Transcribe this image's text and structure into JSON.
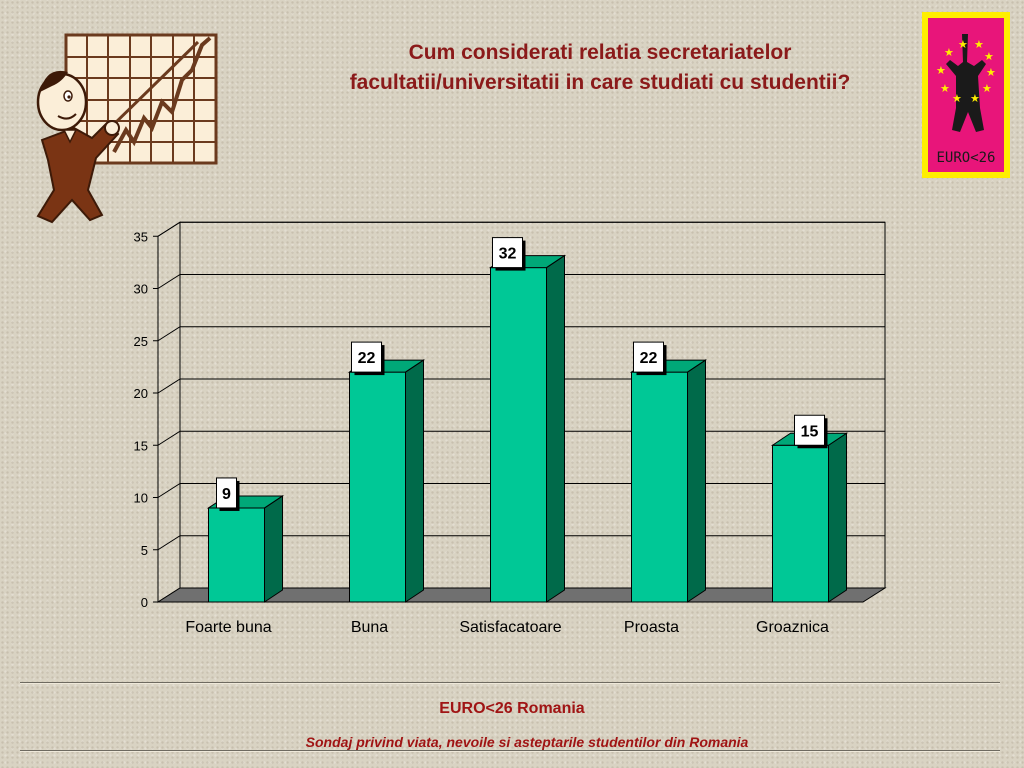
{
  "slide": {
    "title_line1": "Cum considerati relatia secretariatelor",
    "title_line2": "facultatii/universitatii in care studiati cu studentii?"
  },
  "logo": {
    "text": "EURO<26"
  },
  "footer": {
    "title": "EURO<26 Romania",
    "subtitle": "Sondaj privind viata, nevoile si asteptarile studentilor din Romania"
  },
  "colors": {
    "bar_front": "#00c896",
    "bar_side": "#006a4a",
    "bar_top": "#00a878",
    "floor": "#707070",
    "title": "#8b1a1a",
    "logo_pink": "#e8157a",
    "logo_yellow": "#ffee00"
  },
  "chart_data": {
    "type": "bar",
    "categories": [
      "Foarte buna",
      "Buna",
      "Satisfacatoare",
      "Proasta",
      "Groaznica"
    ],
    "values": [
      9,
      22,
      32,
      22,
      15
    ],
    "data_labels": [
      "9",
      "22",
      "32",
      "22",
      "15"
    ],
    "title": "",
    "xlabel": "",
    "ylabel": "",
    "ylim": [
      0,
      35
    ],
    "yticks": [
      "0",
      "5",
      "10",
      "15",
      "20",
      "25",
      "30",
      "35"
    ],
    "grid": true,
    "style": "3d-column"
  }
}
